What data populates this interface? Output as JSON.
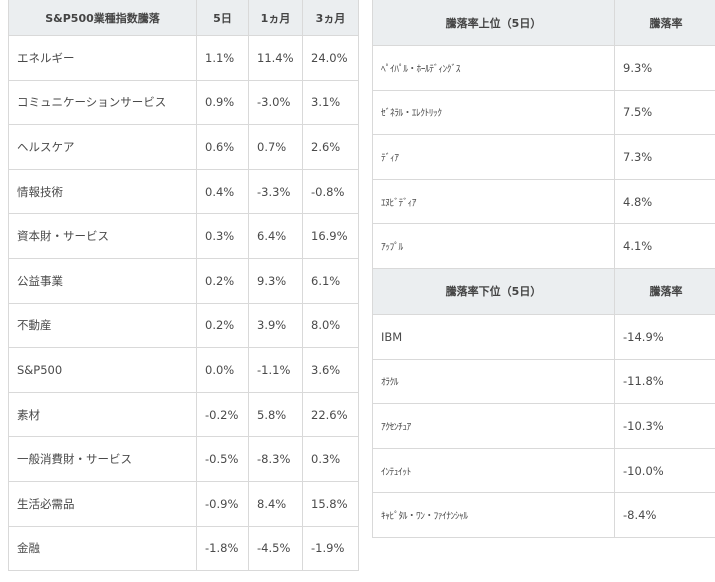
{
  "sector_table": {
    "headers": [
      "S&P500業種指数騰落",
      "5日",
      "1ヵ月",
      "3ヵ月"
    ],
    "rows": [
      {
        "name": "エネルギー",
        "d5": "1.1%",
        "m1": "11.4%",
        "m3": "24.0%"
      },
      {
        "name": "コミュニケーションサービス",
        "d5": "0.9%",
        "m1": "-3.0%",
        "m3": "3.1%"
      },
      {
        "name": "ヘルスケア",
        "d5": "0.6%",
        "m1": "0.7%",
        "m3": "2.6%"
      },
      {
        "name": "情報技術",
        "d5": "0.4%",
        "m1": "-3.3%",
        "m3": "-0.8%"
      },
      {
        "name": "資本財・サービス",
        "d5": "0.3%",
        "m1": "6.4%",
        "m3": "16.9%"
      },
      {
        "name": "公益事業",
        "d5": "0.2%",
        "m1": "9.3%",
        "m3": "6.1%"
      },
      {
        "name": "不動産",
        "d5": "0.2%",
        "m1": "3.9%",
        "m3": "8.0%"
      },
      {
        "name": "S&P500",
        "d5": "0.0%",
        "m1": "-1.1%",
        "m3": "3.6%"
      },
      {
        "name": "素材",
        "d5": "-0.2%",
        "m1": "5.8%",
        "m3": "22.6%"
      },
      {
        "name": "一般消費財・サービス",
        "d5": "-0.5%",
        "m1": "-8.3%",
        "m3": "0.3%"
      },
      {
        "name": "生活必需品",
        "d5": "-0.9%",
        "m1": "8.4%",
        "m3": "15.8%"
      },
      {
        "name": "金融",
        "d5": "-1.8%",
        "m1": "-4.5%",
        "m3": "-1.9%"
      }
    ]
  },
  "top_table": {
    "headers": [
      "騰落率上位（5日）",
      "騰落率"
    ],
    "rows": [
      {
        "name": "ﾍﾟｲﾊﾟﾙ・ﾎｰﾙﾃﾞｨﾝｸﾞｽ",
        "value": "9.3%"
      },
      {
        "name": "ｾﾞﾈﾗﾙ・ｴﾚｸﾄﾘｯｸ",
        "value": "7.5%"
      },
      {
        "name": "ﾃﾞｨｱ",
        "value": "7.3%"
      },
      {
        "name": "ｴﾇﾋﾞﾃﾞｨｱ",
        "value": "4.8%"
      },
      {
        "name": "ｱｯﾌﾟﾙ",
        "value": "4.1%"
      }
    ]
  },
  "bottom_table": {
    "headers": [
      "騰落率下位（5日）",
      "騰落率"
    ],
    "rows": [
      {
        "name": "IBM",
        "value": "-14.9%"
      },
      {
        "name": "ｵﾗｸﾙ",
        "value": "-11.8%"
      },
      {
        "name": "ｱｸｾﾝﾁｭｱ",
        "value": "-10.3%"
      },
      {
        "name": "ｲﾝﾃｭｲｯﾄ",
        "value": "-10.0%"
      },
      {
        "name": "ｷｬﾋﾟﾀﾙ・ﾜﾝ・ﾌｧｲﾅﾝｼｬﾙ",
        "value": "-8.4%"
      }
    ]
  }
}
